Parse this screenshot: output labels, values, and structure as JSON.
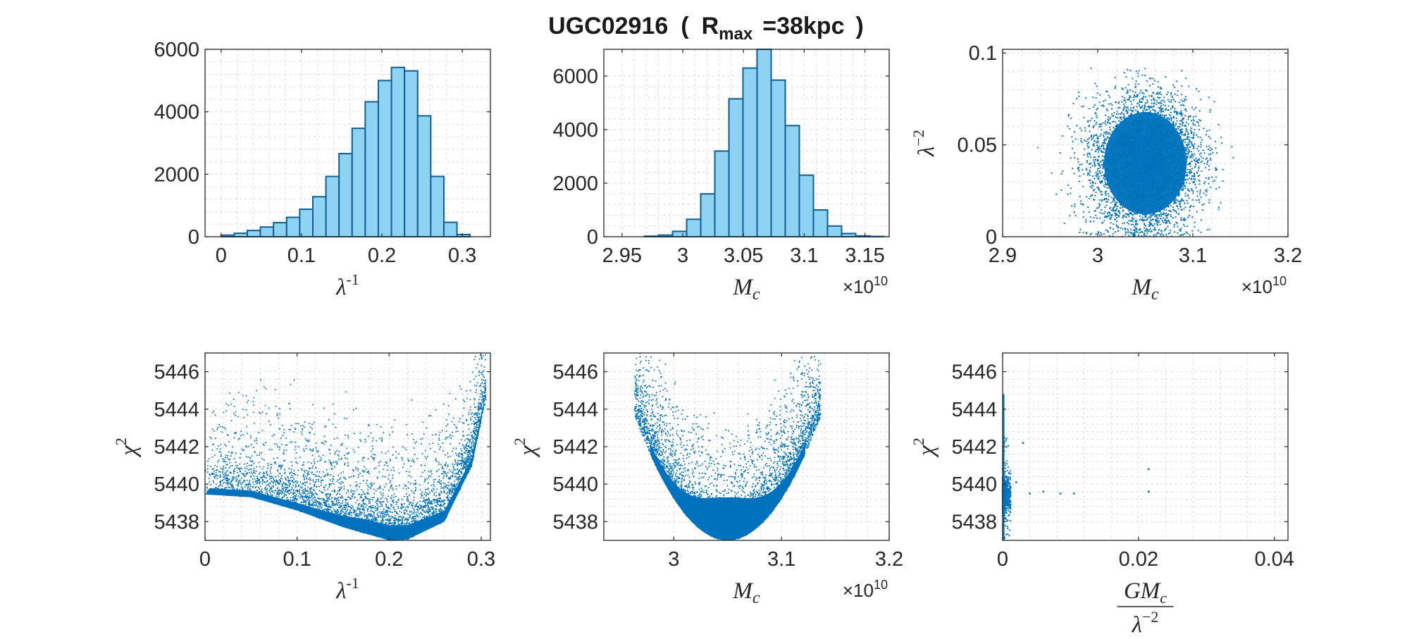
{
  "figure": {
    "title_main": "UGC02916",
    "title_open": "(",
    "title_r": "R",
    "title_sub": "max",
    "title_value": "=38kpc",
    "title_close": ")",
    "point_color": "#0072BD",
    "bar_fill": "#8FD3F3",
    "bar_edge": "#0F5E96"
  },
  "chart_data": [
    {
      "id": "p1",
      "type": "bar",
      "xlabel": {
        "base": "λ",
        "sup": "-1"
      },
      "ylabel": null,
      "xlim": [
        -0.02,
        0.335
      ],
      "ylim": [
        0,
        6000
      ],
      "xticks": [
        0,
        0.1,
        0.2,
        0.3
      ],
      "xtick_labels": [
        "0",
        "0.1",
        "0.2",
        "0.3"
      ],
      "yticks": [
        0,
        2000,
        4000,
        6000
      ],
      "ytick_labels": [
        "0",
        "2000",
        "4000",
        "6000"
      ],
      "grid": true,
      "bin_width": 0.0163,
      "bin_start": 0,
      "values": [
        50,
        110,
        200,
        310,
        450,
        620,
        880,
        1280,
        1930,
        2660,
        3470,
        4320,
        5000,
        5420,
        5310,
        3870,
        1930,
        460,
        70
      ]
    },
    {
      "id": "p2",
      "type": "bar",
      "xlabel": {
        "base": "M",
        "sub": "c"
      },
      "multiplier": "×10",
      "multiplier_exp": "10",
      "ylabel": null,
      "xlim": [
        2.935,
        3.17
      ],
      "ylim": [
        0,
        7000
      ],
      "xticks": [
        2.95,
        3,
        3.05,
        3.1,
        3.15
      ],
      "xtick_labels": [
        "2.95",
        "3",
        "3.05",
        "3.1",
        "3.15"
      ],
      "yticks": [
        0,
        2000,
        4000,
        6000
      ],
      "ytick_labels": [
        "0",
        "2000",
        "4000",
        "6000"
      ],
      "grid": true,
      "bin_width": 0.0116,
      "bin_start": 2.9684,
      "values": [
        20,
        60,
        200,
        650,
        1600,
        3200,
        5150,
        6300,
        7000,
        5850,
        4150,
        2300,
        1000,
        400,
        120,
        30,
        10
      ]
    },
    {
      "id": "p3",
      "type": "scatter",
      "xlabel": {
        "base": "M",
        "sub": "c"
      },
      "multiplier": "×10",
      "multiplier_exp": "10",
      "ylabel": {
        "base": "λ",
        "sup": "−2"
      },
      "xlim": [
        2.9,
        3.2
      ],
      "ylim": [
        0,
        0.102
      ],
      "xticks": [
        2.9,
        3,
        3.1,
        3.2
      ],
      "xtick_labels": [
        "2.9",
        "3",
        "3.1",
        "3.2"
      ],
      "yticks": [
        0,
        0.05,
        0.1
      ],
      "ytick_labels": [
        "0",
        "0.05",
        "0.1"
      ],
      "grid": true,
      "distribution": {
        "center_x": 3.05,
        "spread_x": 0.028,
        "center_y": 0.04,
        "spread_y": 0.018,
        "y_max": 0.092,
        "approx_points": 5200
      }
    },
    {
      "id": "p4",
      "type": "scatter",
      "xlabel": {
        "base": "λ",
        "sup": "-1"
      },
      "ylabel": {
        "base": "χ",
        "sup": "2"
      },
      "xlim": [
        0,
        0.31
      ],
      "ylim": [
        5437,
        5447
      ],
      "xticks": [
        0,
        0.1,
        0.2,
        0.3
      ],
      "xtick_labels": [
        "0",
        "0.1",
        "0.2",
        "0.3"
      ],
      "yticks": [
        5438,
        5440,
        5442,
        5444,
        5446
      ],
      "ytick_labels": [
        "5438",
        "5440",
        "5442",
        "5444",
        "5446"
      ],
      "grid": true,
      "lower_envelope": [
        [
          0,
          5439.45
        ],
        [
          0.05,
          5439.3
        ],
        [
          0.1,
          5438.6
        ],
        [
          0.15,
          5437.7
        ],
        [
          0.2,
          5437.0
        ],
        [
          0.22,
          5437.05
        ],
        [
          0.26,
          5438.0
        ],
        [
          0.29,
          5441.0
        ],
        [
          0.305,
          5444.5
        ]
      ],
      "approx_points": 4000
    },
    {
      "id": "p5",
      "type": "scatter",
      "xlabel": {
        "base": "M",
        "sub": "c"
      },
      "multiplier": "×10",
      "multiplier_exp": "10",
      "ylabel": {
        "base": "χ",
        "sup": "2"
      },
      "xlim": [
        2.935,
        3.2
      ],
      "ylim": [
        5437,
        5447
      ],
      "xticks": [
        3,
        3.1,
        3.2
      ],
      "xtick_labels": [
        "3",
        "3.1",
        "3.2"
      ],
      "yticks": [
        5438,
        5440,
        5442,
        5444,
        5446
      ],
      "ytick_labels": [
        "5438",
        "5440",
        "5442",
        "5444",
        "5446"
      ],
      "grid": true,
      "parabola": {
        "vertex_x": 3.05,
        "vertex_y": 5437.0,
        "half_width": 0.072,
        "rise": 4.6
      },
      "approx_points": 4000
    },
    {
      "id": "p6",
      "type": "scatter",
      "xlabel": {
        "num_base": "GM",
        "num_sub": "c",
        "den_base": "λ",
        "den_sup": "−2"
      },
      "ylabel": {
        "base": "χ",
        "sup": "2"
      },
      "xlim": [
        0,
        0.042
      ],
      "ylim": [
        5437,
        5447
      ],
      "xticks": [
        0,
        0.02,
        0.04
      ],
      "xtick_labels": [
        "0",
        "0.02",
        "0.04"
      ],
      "yticks": [
        5438,
        5440,
        5442,
        5444,
        5446
      ],
      "ytick_labels": [
        "5438",
        "5440",
        "5442",
        "5444",
        "5446"
      ],
      "grid": true,
      "cluster": {
        "x_max": 0.0012,
        "y_min": 5437.0,
        "y_max": 5444.8
      },
      "outliers": [
        [
          0.002,
          5440.1
        ],
        [
          0.004,
          5439.5
        ],
        [
          0.006,
          5439.6
        ],
        [
          0.0085,
          5439.5
        ],
        [
          0.0105,
          5439.5
        ],
        [
          0.0215,
          5439.6
        ],
        [
          0.0215,
          5440.8
        ],
        [
          0.003,
          5442.2
        ]
      ],
      "approx_points": 900
    }
  ]
}
